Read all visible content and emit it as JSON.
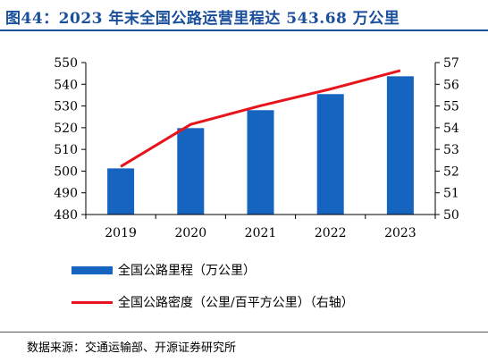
{
  "title": "图44：2023 年末全国公路运营里程达 543.68 万公里",
  "source": "数据来源：交通运输部、开源证券研究所",
  "colors": {
    "title": "#1a4f9c",
    "bar": "#1565c0",
    "line": "#e8141b"
  },
  "chart_data": {
    "type": "bar",
    "categories": [
      "2019",
      "2020",
      "2021",
      "2022",
      "2023"
    ],
    "series": [
      {
        "name": "全国公路里程（万公里）",
        "type": "bar",
        "axis": "left",
        "values": [
          501.25,
          519.81,
          528.07,
          535.48,
          543.68
        ]
      },
      {
        "name": "全国公路密度（公里/百平方公里）（右轴）",
        "type": "line",
        "axis": "right",
        "values": [
          52.21,
          54.15,
          55.01,
          55.78,
          56.63
        ]
      }
    ],
    "ylim": [
      480,
      550
    ],
    "yticks": [
      "550",
      "540",
      "530",
      "520",
      "510",
      "500",
      "490",
      "480"
    ],
    "ylim_right": [
      50,
      57
    ],
    "yticks_right": [
      "57",
      "56",
      "55",
      "54",
      "53",
      "52",
      "51",
      "50"
    ],
    "grid": false,
    "legend": "bottom"
  }
}
